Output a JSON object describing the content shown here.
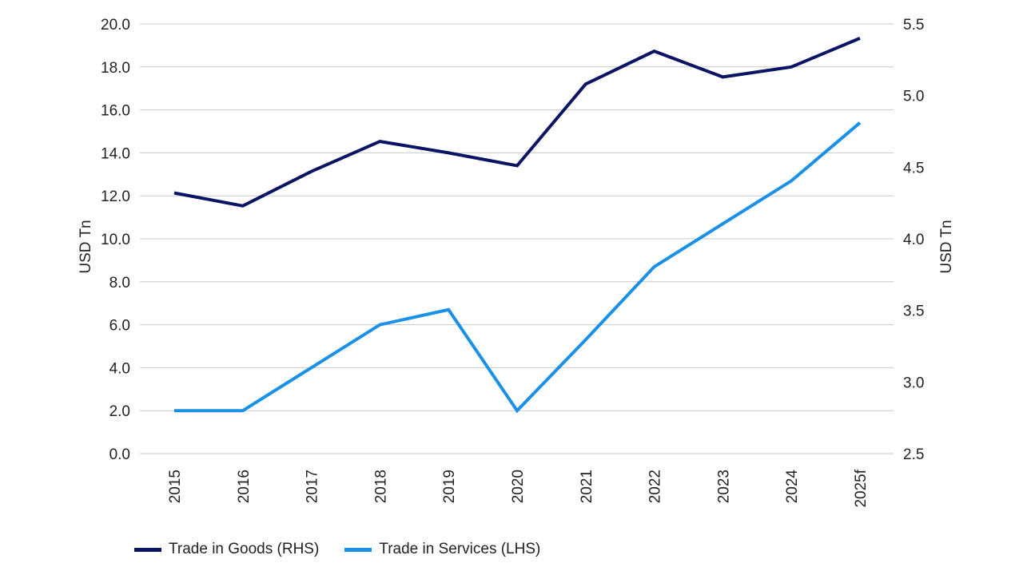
{
  "chart_data": {
    "type": "line",
    "categories": [
      "2015",
      "2016",
      "2017",
      "2018",
      "2019",
      "2020",
      "2021",
      "2022",
      "2023",
      "2024",
      "2025f"
    ],
    "y_left": {
      "label": "USD Tn",
      "lim": [
        0,
        20
      ],
      "ticks": [
        "0.0",
        "2.0",
        "4.0",
        "6.0",
        "8.0",
        "10.0",
        "12.0",
        "14.0",
        "16.0",
        "18.0",
        "20.0"
      ]
    },
    "y_right": {
      "label": "USD Tn",
      "lim": [
        2.5,
        5.5
      ],
      "ticks": [
        "2.5",
        "3.0",
        "3.5",
        "4.0",
        "4.5",
        "5.0",
        "5.5"
      ]
    },
    "grid": true,
    "legend_position": "bottom-left",
    "series": [
      {
        "name": "Trade in Goods (RHS)",
        "axis": "right",
        "color": "#0b1464",
        "values": [
          4.32,
          4.23,
          4.47,
          4.68,
          4.6,
          4.51,
          5.08,
          5.31,
          5.13,
          5.2,
          5.4
        ]
      },
      {
        "name": "Trade in Services (LHS)",
        "axis": "left",
        "color": "#1a90e6",
        "values": [
          2.0,
          2.0,
          4.0,
          6.0,
          6.7,
          2.0,
          5.3,
          8.7,
          10.7,
          12.7,
          15.4
        ]
      }
    ]
  }
}
